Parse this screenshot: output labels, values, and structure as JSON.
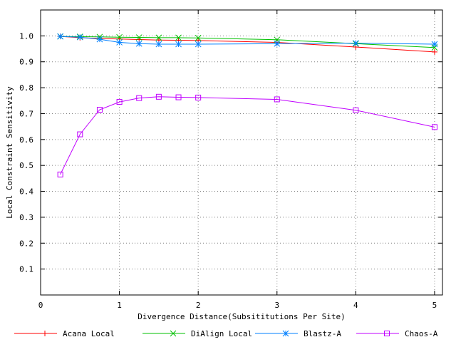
{
  "chart_data": {
    "type": "line",
    "title": "",
    "xlabel": "Divergence Distance(Subsititutions Per Site)",
    "ylabel": "Local Constraint Sensitivity",
    "xlim": [
      0,
      5.1
    ],
    "ylim": [
      0,
      1.1
    ],
    "xticks": [
      0,
      1,
      2,
      3,
      4,
      5
    ],
    "yticks": [
      0.1,
      0.2,
      0.3,
      0.4,
      0.5,
      0.6,
      0.7,
      0.8,
      0.9,
      1.0
    ],
    "xtick_labels": [
      "0",
      "1",
      "2",
      "3",
      "4",
      "5"
    ],
    "ytick_labels": [
      "0.1",
      "0.2",
      "0.3",
      "0.4",
      "0.5",
      "0.6",
      "0.7",
      "0.8",
      "0.9",
      "1.0"
    ],
    "grid": true,
    "legend_position": "bottom",
    "series": [
      {
        "name": "Acana Local",
        "color": "#ff0000",
        "marker": "plus",
        "x": [
          0.25,
          0.5,
          0.75,
          1.0,
          1.25,
          1.5,
          1.75,
          2.0,
          3.0,
          4.0,
          5.0
        ],
        "y": [
          0.998,
          0.993,
          0.99,
          0.988,
          0.986,
          0.984,
          0.983,
          0.982,
          0.975,
          0.957,
          0.938
        ]
      },
      {
        "name": "DiAlign Local",
        "color": "#00c000",
        "marker": "x",
        "x": [
          0.25,
          0.5,
          0.75,
          1.0,
          1.25,
          1.5,
          1.75,
          2.0,
          3.0,
          4.0,
          5.0
        ],
        "y": [
          0.998,
          0.997,
          0.996,
          0.995,
          0.994,
          0.993,
          0.993,
          0.992,
          0.985,
          0.97,
          0.955
        ]
      },
      {
        "name": "Blastz-A",
        "color": "#0080ff",
        "marker": "star",
        "x": [
          0.25,
          0.5,
          0.75,
          1.0,
          1.25,
          1.5,
          1.75,
          2.0,
          3.0,
          4.0,
          5.0
        ],
        "y": [
          0.998,
          0.995,
          0.987,
          0.975,
          0.97,
          0.968,
          0.968,
          0.968,
          0.97,
          0.972,
          0.968
        ]
      },
      {
        "name": "Chaos-A",
        "color": "#c000ff",
        "marker": "square",
        "x": [
          0.25,
          0.5,
          0.75,
          1.0,
          1.25,
          1.5,
          1.75,
          2.0,
          3.0,
          4.0,
          5.0
        ],
        "y": [
          0.465,
          0.62,
          0.715,
          0.745,
          0.76,
          0.765,
          0.763,
          0.762,
          0.755,
          0.713,
          0.648
        ]
      }
    ]
  }
}
